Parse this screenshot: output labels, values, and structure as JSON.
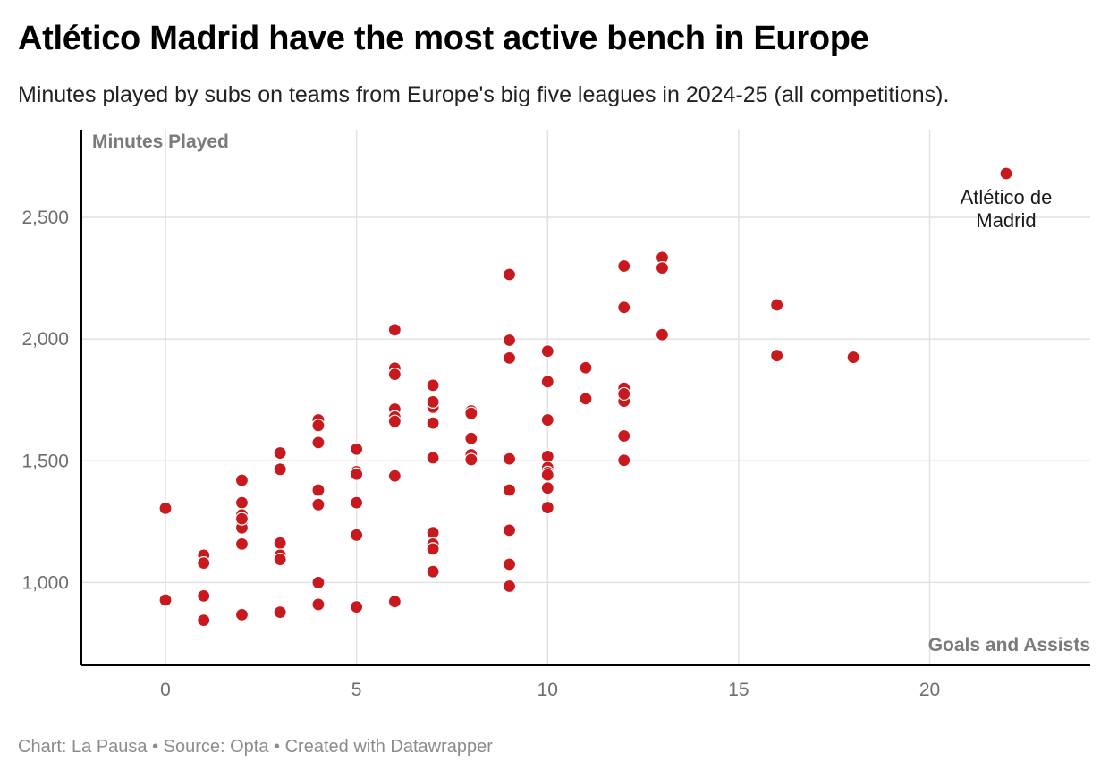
{
  "header": {
    "title": "Atlético Madrid have the most active bench in Europe",
    "subtitle": "Minutes played by subs on teams from Europe's big five leagues in 2024-25 (all competitions)."
  },
  "footer": {
    "credit": "Chart: La Pausa • Source: Opta • Created with Datawrapper"
  },
  "colors": {
    "point": "#c8191f",
    "grid": "#e1e1e1",
    "axis": "#000000"
  },
  "chart_data": {
    "type": "scatter",
    "title": "Atlético Madrid have the most active bench in Europe",
    "xlabel": "Goals and Assists",
    "ylabel": "Minutes Played",
    "xlim": [
      -2.2,
      24.2
    ],
    "ylim": [
      660,
      2860
    ],
    "xticks": [
      0,
      5,
      10,
      15,
      20
    ],
    "yticks": [
      1000,
      1500,
      2000,
      2500
    ],
    "grid": true,
    "annotations": [
      {
        "text_lines": [
          "Atlético de",
          "Madrid"
        ],
        "x": 22,
        "y": 2680
      }
    ],
    "points": [
      {
        "x": 0,
        "y": 1305
      },
      {
        "x": 0,
        "y": 928
      },
      {
        "x": 1,
        "y": 1112
      },
      {
        "x": 1,
        "y": 1080
      },
      {
        "x": 1,
        "y": 945
      },
      {
        "x": 1,
        "y": 845
      },
      {
        "x": 2,
        "y": 1420
      },
      {
        "x": 2,
        "y": 1328
      },
      {
        "x": 2,
        "y": 1278
      },
      {
        "x": 2,
        "y": 1245
      },
      {
        "x": 2,
        "y": 1225
      },
      {
        "x": 2,
        "y": 1262
      },
      {
        "x": 2,
        "y": 1158
      },
      {
        "x": 2,
        "y": 868
      },
      {
        "x": 3,
        "y": 1532
      },
      {
        "x": 3,
        "y": 1465
      },
      {
        "x": 3,
        "y": 1162
      },
      {
        "x": 3,
        "y": 1112
      },
      {
        "x": 3,
        "y": 1095
      },
      {
        "x": 3,
        "y": 878
      },
      {
        "x": 4,
        "y": 1668
      },
      {
        "x": 4,
        "y": 1645
      },
      {
        "x": 4,
        "y": 1575
      },
      {
        "x": 4,
        "y": 1380
      },
      {
        "x": 4,
        "y": 1320
      },
      {
        "x": 4,
        "y": 1000
      },
      {
        "x": 4,
        "y": 910
      },
      {
        "x": 5,
        "y": 1548
      },
      {
        "x": 5,
        "y": 1455
      },
      {
        "x": 5,
        "y": 1445
      },
      {
        "x": 5,
        "y": 1328
      },
      {
        "x": 5,
        "y": 1195
      },
      {
        "x": 5,
        "y": 900
      },
      {
        "x": 6,
        "y": 2038
      },
      {
        "x": 6,
        "y": 1880
      },
      {
        "x": 6,
        "y": 1855
      },
      {
        "x": 6,
        "y": 1712
      },
      {
        "x": 6,
        "y": 1680
      },
      {
        "x": 6,
        "y": 1662
      },
      {
        "x": 6,
        "y": 1438
      },
      {
        "x": 6,
        "y": 922
      },
      {
        "x": 7,
        "y": 1810
      },
      {
        "x": 7,
        "y": 1720
      },
      {
        "x": 7,
        "y": 1742
      },
      {
        "x": 7,
        "y": 1655
      },
      {
        "x": 7,
        "y": 1512
      },
      {
        "x": 7,
        "y": 1205
      },
      {
        "x": 7,
        "y": 1158
      },
      {
        "x": 7,
        "y": 1138
      },
      {
        "x": 7,
        "y": 1045
      },
      {
        "x": 8,
        "y": 1705
      },
      {
        "x": 8,
        "y": 1695
      },
      {
        "x": 8,
        "y": 1592
      },
      {
        "x": 8,
        "y": 1525
      },
      {
        "x": 8,
        "y": 1505
      },
      {
        "x": 9,
        "y": 2265
      },
      {
        "x": 9,
        "y": 1995
      },
      {
        "x": 9,
        "y": 1922
      },
      {
        "x": 9,
        "y": 1508
      },
      {
        "x": 9,
        "y": 1380
      },
      {
        "x": 9,
        "y": 1215
      },
      {
        "x": 9,
        "y": 1075
      },
      {
        "x": 9,
        "y": 985
      },
      {
        "x": 10,
        "y": 1950
      },
      {
        "x": 10,
        "y": 1825
      },
      {
        "x": 10,
        "y": 1668
      },
      {
        "x": 10,
        "y": 1518
      },
      {
        "x": 10,
        "y": 1472
      },
      {
        "x": 10,
        "y": 1452
      },
      {
        "x": 10,
        "y": 1442
      },
      {
        "x": 10,
        "y": 1388
      },
      {
        "x": 10,
        "y": 1308
      },
      {
        "x": 11,
        "y": 1882
      },
      {
        "x": 11,
        "y": 1755
      },
      {
        "x": 12,
        "y": 2300
      },
      {
        "x": 12,
        "y": 2130
      },
      {
        "x": 12,
        "y": 1798
      },
      {
        "x": 12,
        "y": 1762
      },
      {
        "x": 12,
        "y": 1745
      },
      {
        "x": 12,
        "y": 1775
      },
      {
        "x": 12,
        "y": 1602
      },
      {
        "x": 12,
        "y": 1502
      },
      {
        "x": 13,
        "y": 2335
      },
      {
        "x": 13,
        "y": 2292
      },
      {
        "x": 13,
        "y": 2018
      },
      {
        "x": 16,
        "y": 2140
      },
      {
        "x": 16,
        "y": 1932
      },
      {
        "x": 18,
        "y": 1925
      },
      {
        "x": 22,
        "y": 2680
      }
    ]
  }
}
